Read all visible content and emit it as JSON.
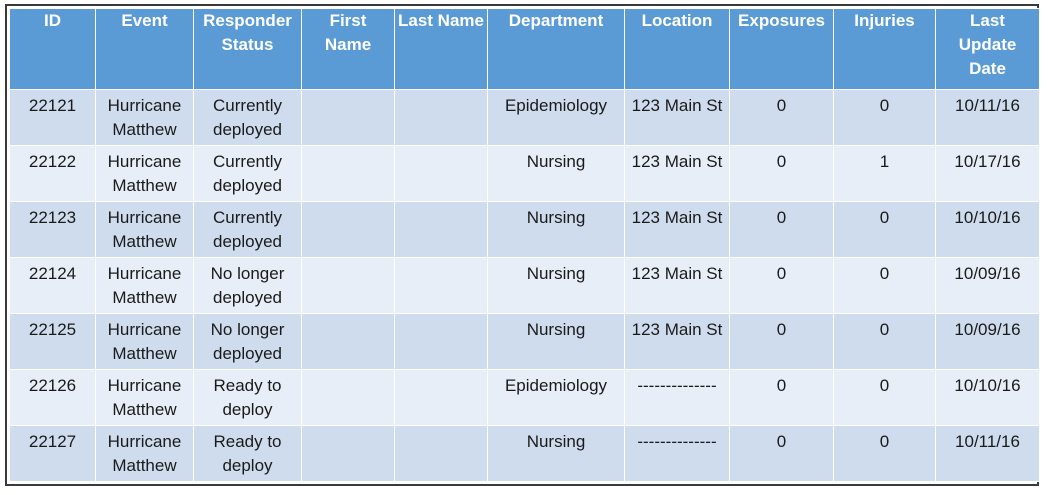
{
  "table": {
    "headers": [
      "ID",
      "Event",
      "Responder Status",
      "First Name",
      "Last Name",
      "Department",
      "Location",
      "Exposures",
      "Injuries",
      "Last Update Date"
    ],
    "rows": [
      [
        "22121",
        "Hurricane Matthew",
        "Currently deployed",
        "",
        "",
        "Epidemiology",
        "123 Main St",
        "0",
        "0",
        "10/11/16"
      ],
      [
        "22122",
        "Hurricane Matthew",
        "Currently deployed",
        "",
        "",
        "Nursing",
        "123 Main St",
        "0",
        "1",
        "10/17/16"
      ],
      [
        "22123",
        "Hurricane Matthew",
        "Currently deployed",
        "",
        "",
        "Nursing",
        "123 Main St",
        "0",
        "0",
        "10/10/16"
      ],
      [
        "22124",
        "Hurricane Matthew",
        "No longer deployed",
        "",
        "",
        "Nursing",
        "123 Main St",
        "0",
        "0",
        "10/09/16"
      ],
      [
        "22125",
        "Hurricane Matthew",
        "No longer deployed",
        "",
        "",
        "Nursing",
        "123 Main St",
        "0",
        "0",
        "10/09/16"
      ],
      [
        "22126",
        "Hurricane Matthew",
        "Ready to deploy",
        "",
        "",
        "Epidemiology",
        "--------------",
        "0",
        "0",
        "10/10/16"
      ],
      [
        "22127",
        "Hurricane Matthew",
        "Ready to deploy",
        "",
        "",
        "Nursing",
        "--------------",
        "0",
        "0",
        "10/11/16"
      ]
    ]
  },
  "colors": {
    "header_bg": "#5b9bd5",
    "row_odd": "#cfdcee",
    "row_even": "#e8eef7"
  }
}
